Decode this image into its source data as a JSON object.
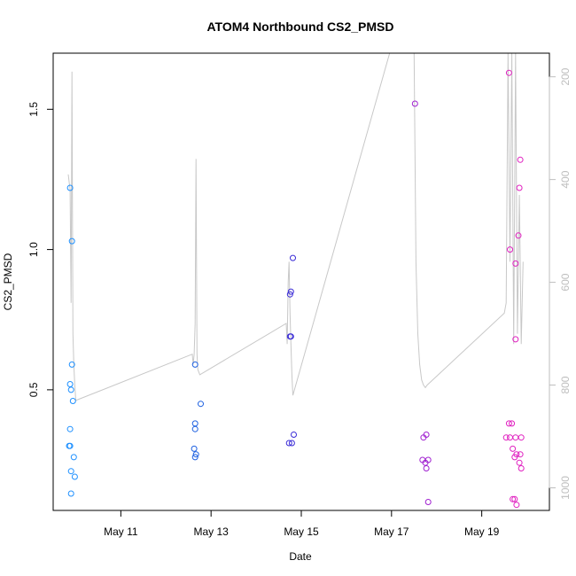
{
  "chart_data": {
    "type": "scatter",
    "title": "ATOM4 Northbound CS2_PMSD",
    "xlabel": "Date",
    "ylabel": "CS2_PMSD",
    "xlim": [
      "2023-05-09T12:00",
      "2023-05-20T12:00"
    ],
    "ylim": [
      0.07,
      1.7
    ],
    "x_ticks": [
      {
        "label": "May 11",
        "value": "2023-05-11T00:00"
      },
      {
        "label": "May 13",
        "value": "2023-05-13T00:00"
      },
      {
        "label": "May 15",
        "value": "2023-05-15T00:00"
      },
      {
        "label": "May 17",
        "value": "2023-05-17T00:00"
      },
      {
        "label": "May 19",
        "value": "2023-05-19T00:00"
      }
    ],
    "y_ticks": [
      {
        "label": "0.5",
        "value": 0.5
      },
      {
        "label": "1.0",
        "value": 1.0
      },
      {
        "label": "1.5",
        "value": 1.5
      }
    ],
    "y2_range": [
      1044,
      154
    ],
    "y2_ticks": [
      {
        "label": "200",
        "value": 200
      },
      {
        "label": "400",
        "value": 400
      },
      {
        "label": "600",
        "value": 600
      },
      {
        "label": "800",
        "value": 800
      },
      {
        "label": "1000",
        "value": 1000
      }
    ],
    "grid": false,
    "legend": "none",
    "series": [
      {
        "color": "#1E90FF",
        "points": [
          [
            "2023-05-09T21:00",
            1.22
          ],
          [
            "2023-05-09T21:00",
            0.52
          ],
          [
            "2023-05-09T21:30",
            0.5
          ],
          [
            "2023-05-09T21:00",
            0.36
          ],
          [
            "2023-05-09T21:00",
            0.3
          ],
          [
            "2023-05-09T20:30",
            0.3
          ],
          [
            "2023-05-09T21:30",
            0.21
          ],
          [
            "2023-05-09T21:30",
            0.13
          ],
          [
            "2023-05-09T22:00",
            1.03
          ],
          [
            "2023-05-09T22:00",
            0.59
          ],
          [
            "2023-05-09T22:30",
            0.46
          ],
          [
            "2023-05-09T23:00",
            0.26
          ],
          [
            "2023-05-09T23:30",
            0.19
          ]
        ]
      },
      {
        "color": "#1C5FE0",
        "points": [
          [
            "2023-05-12T15:30",
            0.59
          ],
          [
            "2023-05-12T15:30",
            0.38
          ],
          [
            "2023-05-12T15:30",
            0.36
          ],
          [
            "2023-05-12T15:00",
            0.29
          ],
          [
            "2023-05-12T16:00",
            0.27
          ],
          [
            "2023-05-12T15:30",
            0.26
          ],
          [
            "2023-05-12T18:30",
            0.45
          ]
        ]
      },
      {
        "color": "#3A2BD6",
        "points": [
          [
            "2023-05-14T18:30",
            0.85
          ],
          [
            "2023-05-14T18:00",
            0.84
          ],
          [
            "2023-05-14T18:30",
            0.69
          ],
          [
            "2023-05-14T18:00",
            0.69
          ],
          [
            "2023-05-14T19:30",
            0.97
          ],
          [
            "2023-05-14T17:30",
            0.31
          ],
          [
            "2023-05-14T19:00",
            0.31
          ],
          [
            "2023-05-14T20:00",
            0.34
          ]
        ]
      },
      {
        "color": "#A020D0",
        "points": [
          [
            "2023-05-17T12:30",
            1.52
          ],
          [
            "2023-05-17T17:00",
            0.33
          ],
          [
            "2023-05-17T18:30",
            0.34
          ],
          [
            "2023-05-17T16:30",
            0.25
          ],
          [
            "2023-05-17T18:00",
            0.24
          ],
          [
            "2023-05-17T19:30",
            0.25
          ],
          [
            "2023-05-17T18:30",
            0.22
          ],
          [
            "2023-05-17T19:30",
            0.1
          ]
        ]
      },
      {
        "color": "#E020C0",
        "points": [
          [
            "2023-05-19T14:30",
            1.63
          ],
          [
            "2023-05-19T15:00",
            1.0
          ],
          [
            "2023-05-19T18:00",
            0.95
          ],
          [
            "2023-05-19T19:30",
            1.05
          ],
          [
            "2023-05-19T20:30",
            1.32
          ],
          [
            "2023-05-19T20:00",
            1.22
          ],
          [
            "2023-05-19T18:00",
            0.68
          ],
          [
            "2023-05-19T14:30",
            0.38
          ],
          [
            "2023-05-19T16:00",
            0.38
          ],
          [
            "2023-05-19T13:00",
            0.33
          ],
          [
            "2023-05-19T15:00",
            0.33
          ],
          [
            "2023-05-19T18:00",
            0.33
          ],
          [
            "2023-05-19T21:00",
            0.33
          ],
          [
            "2023-05-19T16:30",
            0.29
          ],
          [
            "2023-05-19T18:30",
            0.27
          ],
          [
            "2023-05-19T20:30",
            0.27
          ],
          [
            "2023-05-19T17:30",
            0.26
          ],
          [
            "2023-05-19T20:00",
            0.24
          ],
          [
            "2023-05-19T21:00",
            0.22
          ],
          [
            "2023-05-19T16:30",
            0.11
          ],
          [
            "2023-05-19T17:30",
            0.11
          ],
          [
            "2023-05-19T18:30",
            0.09
          ]
        ]
      }
    ],
    "line_series": {
      "color": "#c8c8c8",
      "axis": "right",
      "points": [
        [
          "2023-05-09T20:00",
          390
        ],
        [
          "2023-05-09T21:00",
          420
        ],
        [
          "2023-05-09T21:30",
          640
        ],
        [
          "2023-05-09T22:00",
          190
        ],
        [
          "2023-05-09T22:30",
          700
        ],
        [
          "2023-05-09T23:00",
          760
        ],
        [
          "2023-05-09T23:30",
          800
        ],
        [
          "2023-05-10T00:00",
          830
        ],
        [
          "2023-05-12T14:00",
          740
        ],
        [
          "2023-05-12T14:30",
          760
        ],
        [
          "2023-05-12T15:00",
          740
        ],
        [
          "2023-05-12T15:30",
          680
        ],
        [
          "2023-05-12T16:00",
          360
        ],
        [
          "2023-05-12T16:30",
          740
        ],
        [
          "2023-05-12T17:00",
          770
        ],
        [
          "2023-05-12T18:00",
          780
        ],
        [
          "2023-05-14T16:00",
          680
        ],
        [
          "2023-05-14T16:30",
          720
        ],
        [
          "2023-05-14T17:00",
          600
        ],
        [
          "2023-05-14T17:30",
          560
        ],
        [
          "2023-05-14T18:00",
          660
        ],
        [
          "2023-05-14T18:30",
          720
        ],
        [
          "2023-05-14T19:00",
          780
        ],
        [
          "2023-05-14T19:30",
          820
        ],
        [
          "2023-05-16T23:00",
          154
        ],
        [
          "2023-05-17T00:00",
          154
        ],
        [
          "2023-05-17T12:00",
          154
        ],
        [
          "2023-05-17T13:00",
          560
        ],
        [
          "2023-05-17T14:00",
          700
        ],
        [
          "2023-05-17T15:00",
          760
        ],
        [
          "2023-05-17T16:00",
          790
        ],
        [
          "2023-05-17T17:00",
          800
        ],
        [
          "2023-05-17T18:00",
          805
        ],
        [
          "2023-05-17T19:00",
          800
        ],
        [
          "2023-05-19T12:00",
          660
        ],
        [
          "2023-05-19T13:00",
          640
        ],
        [
          "2023-05-19T14:00",
          154
        ],
        [
          "2023-05-19T15:00",
          560
        ],
        [
          "2023-05-19T16:00",
          154
        ],
        [
          "2023-05-19T17:00",
          720
        ],
        [
          "2023-05-19T18:00",
          154
        ],
        [
          "2023-05-19T19:00",
          700
        ],
        [
          "2023-05-19T20:00",
          430
        ],
        [
          "2023-05-19T21:00",
          720
        ],
        [
          "2023-05-19T22:00",
          560
        ]
      ]
    }
  }
}
